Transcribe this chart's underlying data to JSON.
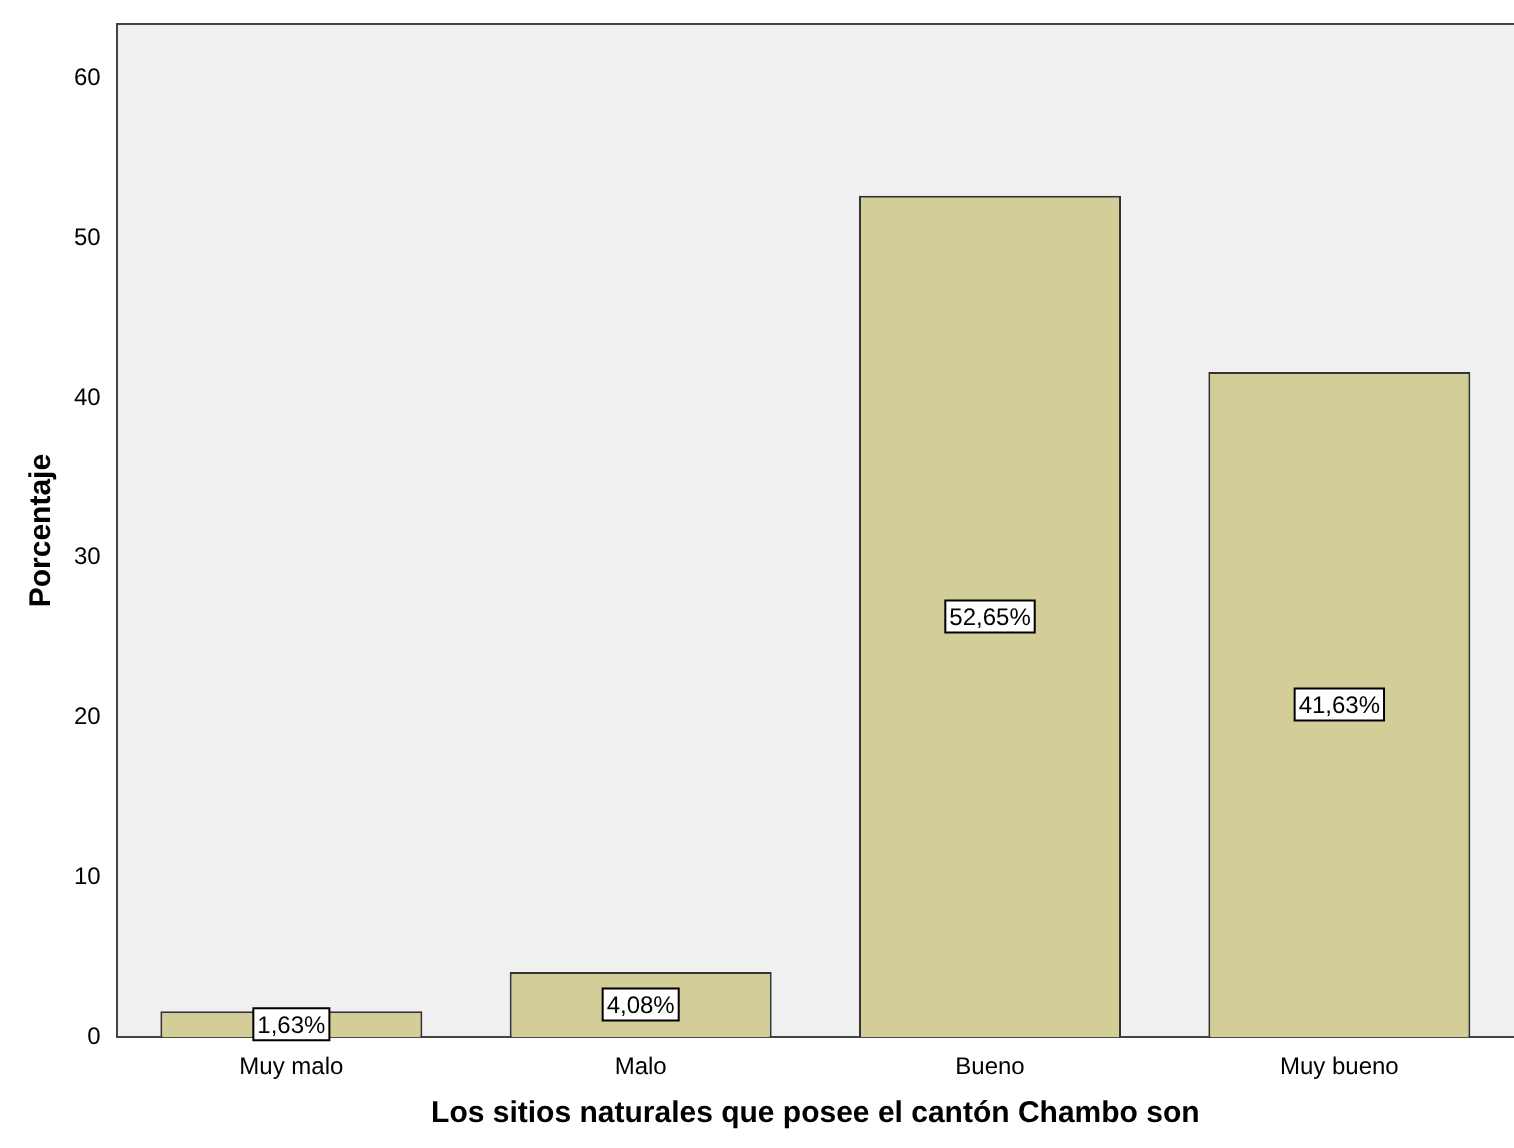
{
  "chart_data": {
    "type": "bar",
    "xlabel": "Los sitios naturales que posee el cantón Chambo son",
    "ylabel": "Porcentaje",
    "categories": [
      "Muy malo",
      "Malo",
      "Bueno",
      "Muy bueno"
    ],
    "values": [
      1.63,
      4.08,
      52.65,
      41.63
    ],
    "value_labels": [
      "1,63%",
      "4,08%",
      "52,65%",
      "41,63%"
    ],
    "color": "#d3ce97",
    "ylim": [
      0,
      63.4
    ],
    "yticks": [
      0,
      10,
      20,
      30,
      40,
      50,
      60
    ],
    "grid": false,
    "legend": false
  }
}
